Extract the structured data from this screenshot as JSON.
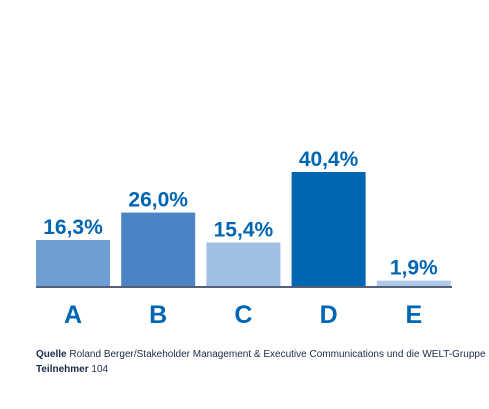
{
  "chart_data": {
    "type": "bar",
    "categories": [
      "A",
      "B",
      "C",
      "D",
      "E"
    ],
    "values": [
      16.3,
      26.0,
      15.4,
      40.4,
      1.9
    ],
    "value_labels": [
      "16,3%",
      "26,0%",
      "15,4%",
      "40,4%",
      "1,9%"
    ],
    "bar_colors": [
      "#6f9fd2",
      "#4b84c4",
      "#9fbfe3",
      "#0066b3",
      "#b0cbe8"
    ],
    "label_color": "#0066b3",
    "category_color": "#0066b3",
    "axis_color": "#1a2b4a",
    "title": "",
    "xlabel": "",
    "ylabel": "",
    "grid": false
  },
  "footer": {
    "source_label": "Quelle",
    "source_text": "Roland Berger/Stakeholder Management & Executive Communications  und die WELT-Gruppe",
    "participants_label": "Teilnehmer",
    "participants_value": "104"
  }
}
